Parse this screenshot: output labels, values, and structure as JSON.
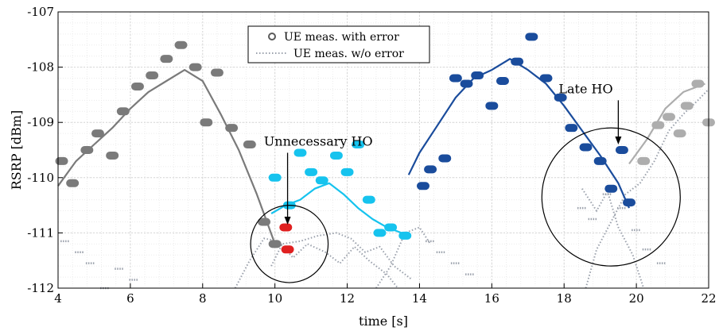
{
  "chart_data": {
    "type": "line",
    "xlabel": "time [s]",
    "ylabel": "RSRP [dBm]",
    "xlim": [
      4,
      22
    ],
    "ylim": [
      -112,
      -107
    ],
    "xticks": [
      "4",
      "6",
      "8",
      "10",
      "12",
      "14",
      "16",
      "18",
      "20",
      "22"
    ],
    "yticks": [
      "-107",
      "-108",
      "-109",
      "-110",
      "-111",
      "-112"
    ],
    "grid": true,
    "minor_grid": true,
    "legend": {
      "placement": "top-center",
      "entries": [
        {
          "label": "UE meas. with error",
          "style": "marker-circle"
        },
        {
          "label": "UE meas. w/o error",
          "style": "dotted-line"
        }
      ]
    },
    "colors": {
      "cell1": "#7a7a7a",
      "cell2": "#16c3ee",
      "cell3": "#1a4c9c",
      "cell4": "#adadad",
      "red": "#e02020",
      "dotted": "#9aa0ab"
    },
    "serving_lines": [
      {
        "color_key": "cell1",
        "points": [
          [
            4,
            -110.15
          ],
          [
            4.5,
            -109.7
          ],
          [
            5,
            -109.4
          ],
          [
            5.5,
            -109.1
          ],
          [
            6,
            -108.75
          ],
          [
            6.5,
            -108.45
          ],
          [
            7,
            -108.25
          ],
          [
            7.5,
            -108.05
          ],
          [
            8,
            -108.25
          ],
          [
            8.5,
            -108.85
          ],
          [
            9,
            -109.5
          ],
          [
            9.5,
            -110.3
          ],
          [
            10,
            -111.2
          ]
        ]
      },
      {
        "color_key": "cell2",
        "points": [
          [
            9.9,
            -110.65
          ],
          [
            10.3,
            -110.5
          ],
          [
            10.7,
            -110.4
          ],
          [
            11.1,
            -110.2
          ],
          [
            11.5,
            -110.1
          ],
          [
            11.9,
            -110.3
          ],
          [
            12.3,
            -110.55
          ],
          [
            12.7,
            -110.75
          ],
          [
            13.1,
            -110.9
          ],
          [
            13.5,
            -111.0
          ],
          [
            13.65,
            -111.05
          ]
        ]
      },
      {
        "color_key": "cell3",
        "points": [
          [
            13.7,
            -109.95
          ],
          [
            14,
            -109.55
          ],
          [
            14.5,
            -109.05
          ],
          [
            15,
            -108.55
          ],
          [
            15.5,
            -108.2
          ],
          [
            16,
            -108.05
          ],
          [
            16.5,
            -107.85
          ],
          [
            17,
            -108.05
          ],
          [
            17.5,
            -108.3
          ],
          [
            18,
            -108.7
          ],
          [
            18.5,
            -109.15
          ],
          [
            19,
            -109.6
          ],
          [
            19.5,
            -110.1
          ],
          [
            19.8,
            -110.55
          ]
        ]
      },
      {
        "color_key": "cell4",
        "points": [
          [
            19.8,
            -109.75
          ],
          [
            20.3,
            -109.3
          ],
          [
            20.8,
            -108.75
          ],
          [
            21.3,
            -108.45
          ],
          [
            21.9,
            -108.3
          ]
        ]
      }
    ],
    "error_meas": [
      {
        "color_key": "cell1",
        "points": [
          [
            4.1,
            -109.7
          ],
          [
            4.4,
            -110.1
          ],
          [
            4.8,
            -109.5
          ],
          [
            5.1,
            -109.2
          ],
          [
            5.5,
            -109.6
          ],
          [
            5.8,
            -108.8
          ],
          [
            6.2,
            -108.35
          ],
          [
            6.6,
            -108.15
          ],
          [
            7.0,
            -107.85
          ],
          [
            7.4,
            -107.6
          ],
          [
            7.8,
            -108.0
          ],
          [
            8.1,
            -109.0
          ],
          [
            8.4,
            -108.1
          ],
          [
            8.8,
            -109.1
          ],
          [
            9.3,
            -109.4
          ],
          [
            9.7,
            -110.8
          ],
          [
            10.0,
            -111.2
          ]
        ]
      },
      {
        "color_key": "cell2",
        "points": [
          [
            10.0,
            -110.0
          ],
          [
            10.4,
            -110.5
          ],
          [
            10.7,
            -109.55
          ],
          [
            11.0,
            -109.9
          ],
          [
            11.3,
            -110.05
          ],
          [
            11.7,
            -109.6
          ],
          [
            12.0,
            -109.9
          ],
          [
            12.3,
            -109.4
          ],
          [
            12.6,
            -110.4
          ],
          [
            12.9,
            -111.0
          ],
          [
            13.2,
            -110.9
          ],
          [
            13.6,
            -111.05
          ]
        ]
      },
      {
        "color_key": "cell3",
        "points": [
          [
            14.1,
            -110.15
          ],
          [
            14.3,
            -109.85
          ],
          [
            14.7,
            -109.65
          ],
          [
            15.0,
            -108.2
          ],
          [
            15.3,
            -108.3
          ],
          [
            15.6,
            -108.15
          ],
          [
            16.0,
            -108.7
          ],
          [
            16.3,
            -108.25
          ],
          [
            16.7,
            -107.9
          ],
          [
            17.1,
            -107.45
          ],
          [
            17.5,
            -108.2
          ],
          [
            17.9,
            -108.55
          ],
          [
            18.2,
            -109.1
          ],
          [
            18.6,
            -109.45
          ],
          [
            19.0,
            -109.7
          ],
          [
            19.3,
            -110.2
          ],
          [
            19.6,
            -109.5
          ],
          [
            19.8,
            -110.45
          ]
        ]
      },
      {
        "color_key": "cell4",
        "points": [
          [
            20.2,
            -109.7
          ],
          [
            20.6,
            -109.05
          ],
          [
            20.9,
            -108.9
          ],
          [
            21.2,
            -109.2
          ],
          [
            21.4,
            -108.7
          ],
          [
            21.7,
            -108.3
          ],
          [
            22.0,
            -109.0
          ]
        ]
      },
      {
        "color_key": "red",
        "points": [
          [
            10.3,
            -110.9
          ],
          [
            10.35,
            -111.3
          ]
        ]
      }
    ],
    "noerror_meas": [
      {
        "points": [
          [
            9.9,
            -111.6
          ],
          [
            10.2,
            -111.2
          ],
          [
            10.7,
            -111.15
          ],
          [
            11.2,
            -111.05
          ],
          [
            11.7,
            -111.0
          ],
          [
            12.1,
            -111.1
          ],
          [
            12.5,
            -111.35
          ],
          [
            12.9,
            -111.25
          ],
          [
            13.3,
            -111.6
          ],
          [
            13.8,
            -111.85
          ]
        ]
      },
      {
        "points": [
          [
            8.9,
            -112.0
          ],
          [
            9.3,
            -111.5
          ],
          [
            9.7,
            -111.1
          ],
          [
            10.1,
            -111.15
          ],
          [
            10.5,
            -111.45
          ],
          [
            10.9,
            -111.2
          ],
          [
            11.4,
            -111.35
          ],
          [
            11.8,
            -111.55
          ],
          [
            12.2,
            -111.25
          ],
          [
            12.6,
            -111.5
          ],
          [
            13.1,
            -111.75
          ],
          [
            13.4,
            -112.0
          ]
        ]
      },
      {
        "points": [
          [
            12.8,
            -112.0
          ],
          [
            13.2,
            -111.6
          ],
          [
            13.6,
            -111.0
          ],
          [
            14.0,
            -110.9
          ],
          [
            14.3,
            -111.2
          ]
        ]
      },
      {
        "points": [
          [
            18.6,
            -112.0
          ],
          [
            18.9,
            -111.3
          ],
          [
            19.3,
            -110.8
          ],
          [
            19.7,
            -110.3
          ],
          [
            20.1,
            -110.1
          ],
          [
            20.5,
            -109.7
          ],
          [
            20.9,
            -109.15
          ],
          [
            21.3,
            -108.85
          ],
          [
            21.7,
            -108.6
          ],
          [
            22.0,
            -108.4
          ]
        ]
      },
      {
        "points": [
          [
            18.5,
            -110.2
          ],
          [
            18.9,
            -110.6
          ],
          [
            19.2,
            -110.25
          ],
          [
            19.5,
            -110.9
          ],
          [
            19.9,
            -111.4
          ],
          [
            20.2,
            -112.0
          ]
        ]
      }
    ],
    "gray_dashes": [
      [
        4.2,
        -111.15
      ],
      [
        4.6,
        -111.35
      ],
      [
        4.9,
        -111.55
      ],
      [
        5.3,
        -112.0
      ],
      [
        5.7,
        -111.65
      ],
      [
        6.1,
        -111.85
      ],
      [
        14.3,
        -111.15
      ],
      [
        14.6,
        -111.35
      ],
      [
        15.0,
        -111.55
      ],
      [
        15.4,
        -111.75
      ],
      [
        18.5,
        -110.55
      ],
      [
        18.8,
        -110.75
      ],
      [
        19.2,
        -110.3
      ],
      [
        19.6,
        -110.55
      ],
      [
        20.0,
        -110.95
      ],
      [
        20.3,
        -111.3
      ],
      [
        20.7,
        -111.55
      ]
    ],
    "annotations": [
      {
        "text": "Unnecessary HO",
        "x": 11.2,
        "y": -109.35,
        "arrow_to": [
          10.35,
          -110.85
        ],
        "arrow_from": [
          10.35,
          -109.55
        ],
        "circle": [
          10.4,
          -111.2
        ],
        "circle_r": 0.7
      },
      {
        "text": "Late HO",
        "x": 18.6,
        "y": -108.4,
        "arrow_to": [
          19.5,
          -109.4
        ],
        "arrow_from": [
          19.5,
          -108.6
        ],
        "circle": [
          19.3,
          -110.35
        ],
        "circle_r": 1.25
      }
    ]
  }
}
